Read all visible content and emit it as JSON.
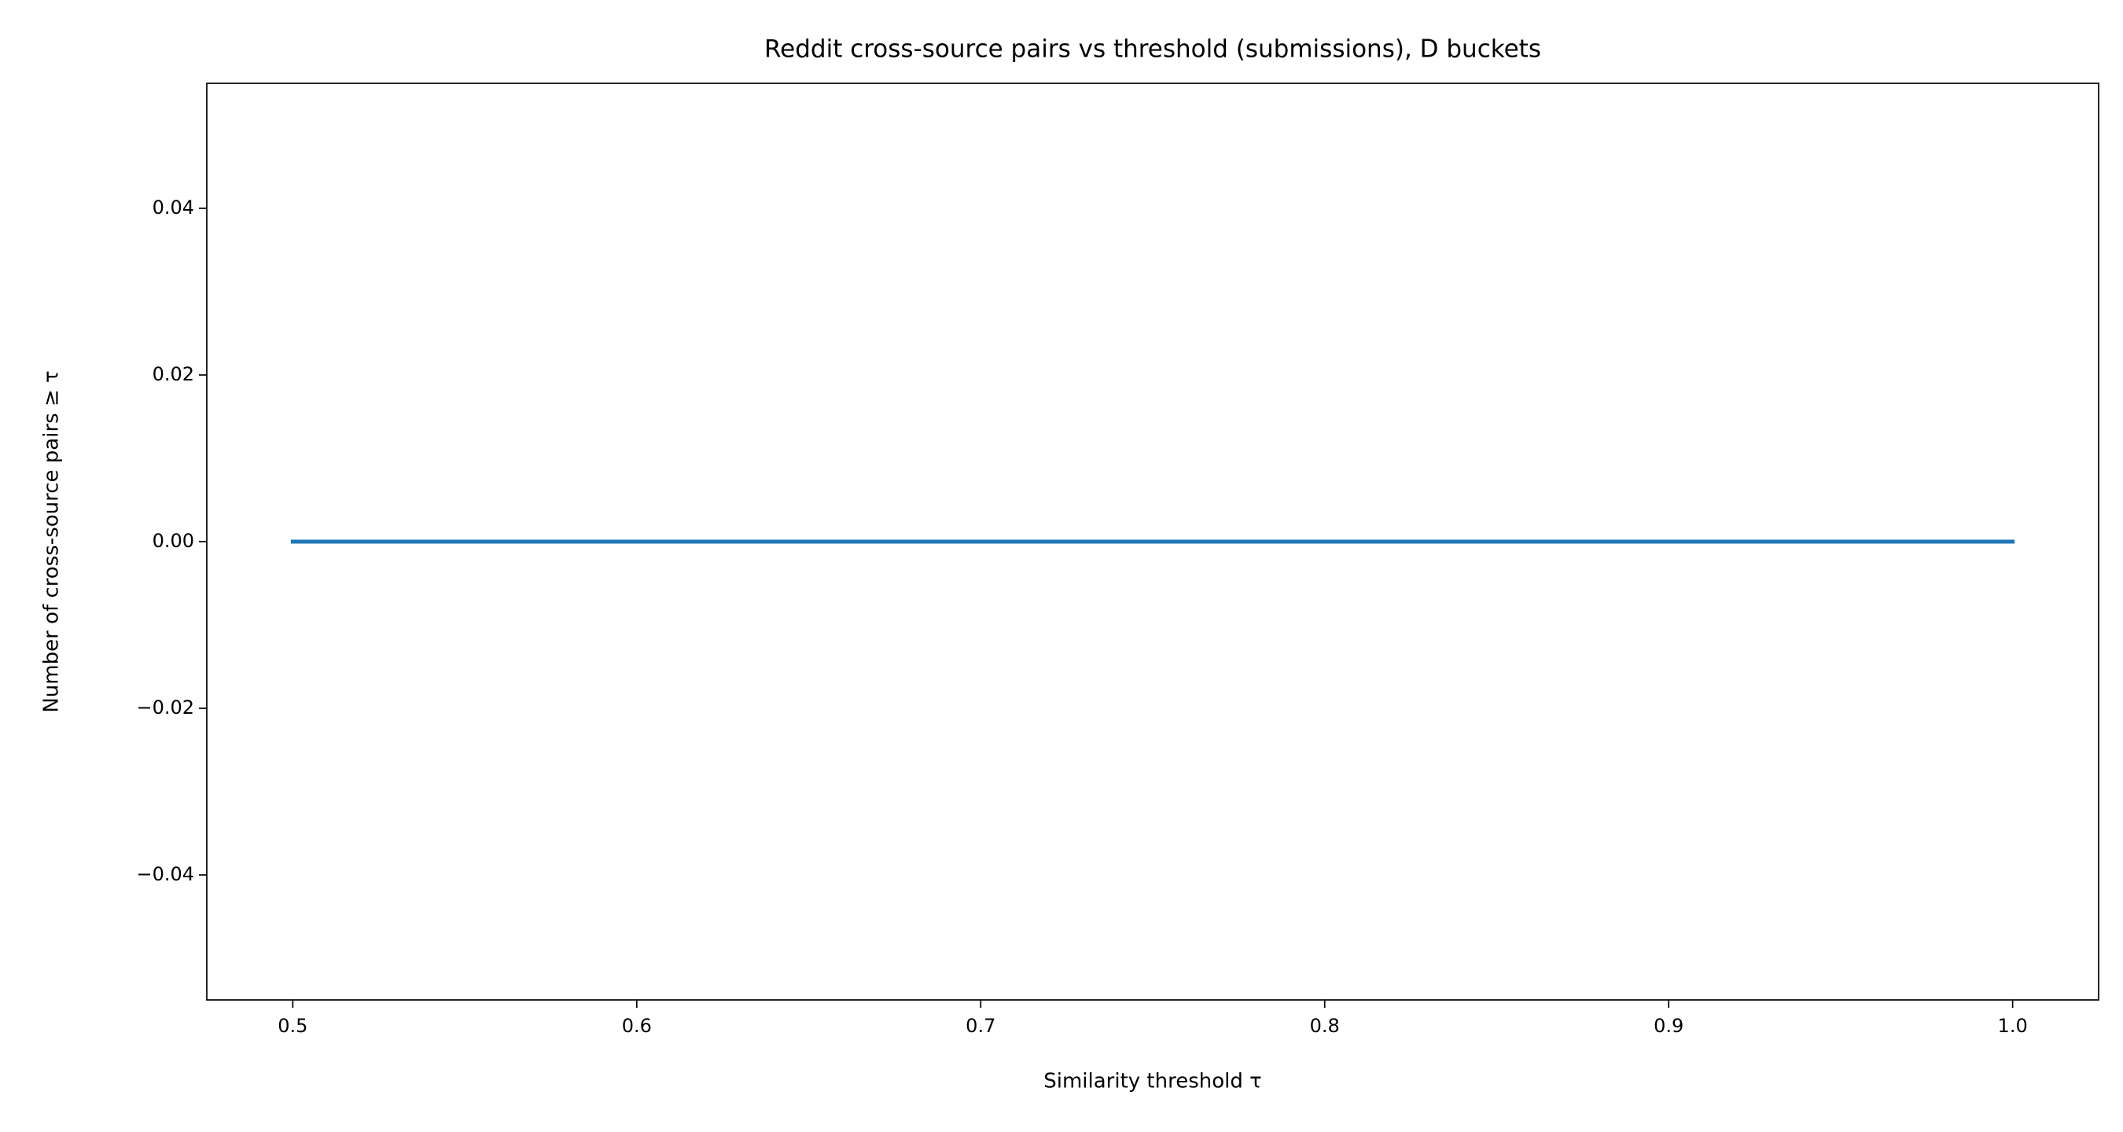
{
  "chart_data": {
    "type": "line",
    "title": "Reddit cross-source pairs vs threshold (submissions), D buckets",
    "xlabel": "Similarity threshold τ",
    "ylabel": "Number of cross-source pairs ≥ τ",
    "x": [
      0.5,
      0.55,
      0.6,
      0.65,
      0.7,
      0.75,
      0.8,
      0.85,
      0.9,
      0.95,
      1.0
    ],
    "series": [
      {
        "color": "#1f77b4",
        "values": [
          0,
          0,
          0,
          0,
          0,
          0,
          0,
          0,
          0,
          0,
          0
        ]
      }
    ],
    "xlim": [
      0.475,
      1.025
    ],
    "xticks": [
      0.5,
      0.6,
      0.7,
      0.8,
      0.9,
      {
        "value": 1.0,
        "label": "1.0"
      }
    ],
    "ylim": [
      -0.055,
      0.055
    ],
    "yticks": [
      {
        "value": -0.04,
        "label": "−0.04"
      },
      {
        "value": -0.02,
        "label": "−0.02"
      },
      {
        "value": 0,
        "label": "0.00"
      },
      0.02,
      0.04
    ],
    "grid": false
  }
}
